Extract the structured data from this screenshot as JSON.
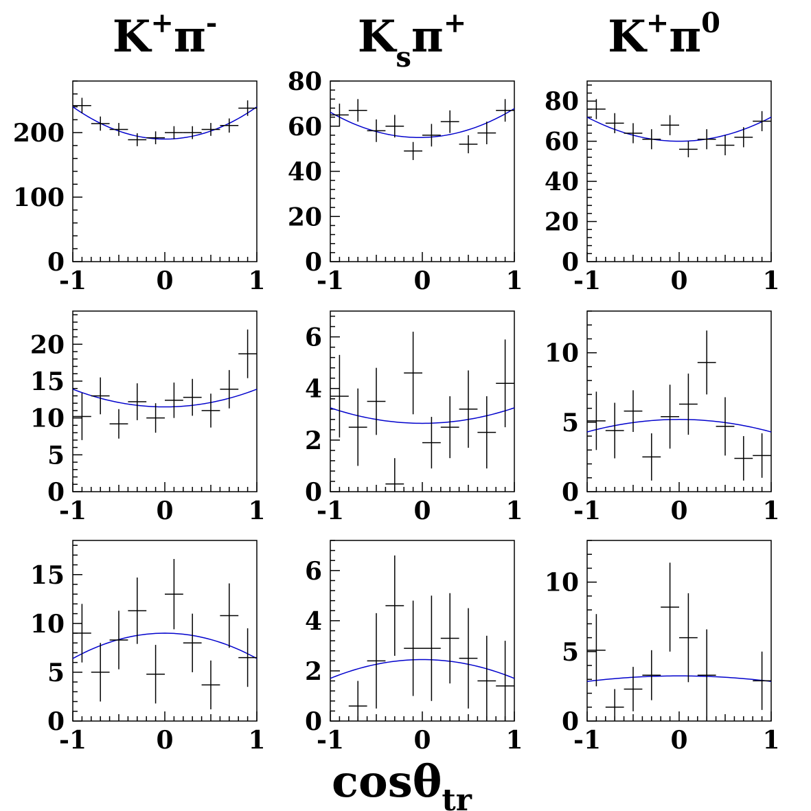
{
  "colors": {
    "fit": "#0000cc",
    "points": "#000000",
    "axes": "#000000"
  },
  "titles": {
    "col0": {
      "base": "K",
      "sup1": "+",
      "mid": "π",
      "sup2": "-",
      "sub": ""
    },
    "col1": {
      "base": "K",
      "sup1": "",
      "mid": "π",
      "sup2": "+",
      "sub": "s"
    },
    "col2": {
      "base": "K",
      "sup1": "+",
      "mid": "π",
      "sup2": "0",
      "sub": ""
    }
  },
  "xlabel": {
    "main": "cosθ",
    "sub": "tr"
  },
  "chart_data": [
    {
      "type": "scatter",
      "row": 0,
      "col": 0,
      "xlim": [
        -1,
        1
      ],
      "ylim": [
        0,
        280
      ],
      "xticks": [
        -1,
        0,
        1
      ],
      "xtick_labels": [
        "-1",
        "0",
        "1"
      ],
      "yticks": [
        0,
        100,
        200
      ],
      "ytick_labels": [
        "0",
        "100",
        "200"
      ],
      "points": [
        {
          "x": -0.9,
          "y": 242,
          "err": 12
        },
        {
          "x": -0.7,
          "y": 214,
          "err": 11
        },
        {
          "x": -0.5,
          "y": 205,
          "err": 10
        },
        {
          "x": -0.3,
          "y": 189,
          "err": 10
        },
        {
          "x": -0.1,
          "y": 192,
          "err": 10
        },
        {
          "x": 0.1,
          "y": 200,
          "err": 10
        },
        {
          "x": 0.3,
          "y": 200,
          "err": 10
        },
        {
          "x": 0.5,
          "y": 205,
          "err": 10
        },
        {
          "x": 0.7,
          "y": 211,
          "err": 11
        },
        {
          "x": 0.9,
          "y": 238,
          "err": 12
        }
      ],
      "fit": {
        "a": 190,
        "b": 0,
        "c": 50
      }
    },
    {
      "type": "scatter",
      "row": 0,
      "col": 1,
      "xlim": [
        -1,
        1
      ],
      "ylim": [
        0,
        80
      ],
      "xticks": [
        -1,
        0,
        1
      ],
      "xtick_labels": [
        "-1",
        "0",
        "1"
      ],
      "yticks": [
        0,
        20,
        40,
        60,
        80
      ],
      "ytick_labels": [
        "0",
        "20",
        "40",
        "60",
        "80"
      ],
      "points": [
        {
          "x": -0.9,
          "y": 65,
          "err": 5
        },
        {
          "x": -0.7,
          "y": 67,
          "err": 5
        },
        {
          "x": -0.5,
          "y": 58,
          "err": 5
        },
        {
          "x": -0.3,
          "y": 60,
          "err": 5
        },
        {
          "x": -0.1,
          "y": 49,
          "err": 4
        },
        {
          "x": 0.1,
          "y": 56,
          "err": 5
        },
        {
          "x": 0.3,
          "y": 62,
          "err": 5
        },
        {
          "x": 0.5,
          "y": 52,
          "err": 4
        },
        {
          "x": 0.7,
          "y": 57,
          "err": 5
        },
        {
          "x": 0.9,
          "y": 67,
          "err": 5
        }
      ],
      "fit": {
        "a": 55,
        "b": 0.8,
        "c": 12
      }
    },
    {
      "type": "scatter",
      "row": 0,
      "col": 2,
      "xlim": [
        -1,
        1
      ],
      "ylim": [
        0,
        90
      ],
      "xticks": [
        -1,
        0,
        1
      ],
      "xtick_labels": [
        "-1",
        "0",
        "1"
      ],
      "yticks": [
        0,
        20,
        40,
        60,
        80
      ],
      "ytick_labels": [
        "0",
        "20",
        "40",
        "60",
        "80"
      ],
      "points": [
        {
          "x": -0.9,
          "y": 76,
          "err": 5
        },
        {
          "x": -0.7,
          "y": 69,
          "err": 5
        },
        {
          "x": -0.5,
          "y": 64,
          "err": 5
        },
        {
          "x": -0.3,
          "y": 61,
          "err": 5
        },
        {
          "x": -0.1,
          "y": 68,
          "err": 5
        },
        {
          "x": 0.1,
          "y": 56,
          "err": 4
        },
        {
          "x": 0.3,
          "y": 61,
          "err": 5
        },
        {
          "x": 0.5,
          "y": 58,
          "err": 5
        },
        {
          "x": 0.7,
          "y": 62,
          "err": 5
        },
        {
          "x": 0.9,
          "y": 70,
          "err": 5
        }
      ],
      "fit": {
        "a": 60,
        "b": 0,
        "c": 12
      }
    },
    {
      "type": "scatter",
      "row": 1,
      "col": 0,
      "xlim": [
        -1,
        1
      ],
      "ylim": [
        0,
        24.5
      ],
      "xticks": [
        -1,
        0,
        1
      ],
      "xtick_labels": [
        "-1",
        "0",
        "1"
      ],
      "yticks": [
        0,
        5,
        10,
        15,
        20
      ],
      "ytick_labels": [
        "0",
        "5",
        "10",
        "15",
        "20"
      ],
      "points": [
        {
          "x": -0.9,
          "y": 10.2,
          "err": 3.2
        },
        {
          "x": -0.7,
          "y": 13,
          "err": 2.5
        },
        {
          "x": -0.5,
          "y": 9.2,
          "err": 2
        },
        {
          "x": -0.3,
          "y": 12.2,
          "err": 2.5
        },
        {
          "x": -0.1,
          "y": 10,
          "err": 2
        },
        {
          "x": 0.1,
          "y": 12.4,
          "err": 2.4
        },
        {
          "x": 0.3,
          "y": 12.8,
          "err": 2.5
        },
        {
          "x": 0.5,
          "y": 11,
          "err": 2.3
        },
        {
          "x": 0.7,
          "y": 13.9,
          "err": 2.6
        },
        {
          "x": 0.9,
          "y": 18.7,
          "err": 3.3
        }
      ],
      "fit": {
        "a": 11.5,
        "b": 0,
        "c": 2.4
      }
    },
    {
      "type": "scatter",
      "row": 1,
      "col": 1,
      "xlim": [
        -1,
        1
      ],
      "ylim": [
        0,
        7
      ],
      "xticks": [
        -1,
        0,
        1
      ],
      "xtick_labels": [
        "-1",
        "0",
        "1"
      ],
      "yticks": [
        0,
        2,
        4,
        6
      ],
      "ytick_labels": [
        "0",
        "2",
        "4",
        "6"
      ],
      "points": [
        {
          "x": -0.9,
          "y": 3.7,
          "err": 1.6
        },
        {
          "x": -0.7,
          "y": 2.5,
          "err": 1.5
        },
        {
          "x": -0.5,
          "y": 3.5,
          "err": 1.3
        },
        {
          "x": -0.3,
          "y": 0.3,
          "err": 1.0
        },
        {
          "x": -0.1,
          "y": 4.6,
          "err": 1.6
        },
        {
          "x": 0.1,
          "y": 1.9,
          "err": 1.0
        },
        {
          "x": 0.3,
          "y": 2.5,
          "err": 1.2
        },
        {
          "x": 0.5,
          "y": 3.2,
          "err": 1.5
        },
        {
          "x": 0.7,
          "y": 2.3,
          "err": 1.4
        },
        {
          "x": 0.9,
          "y": 4.2,
          "err": 1.7
        }
      ],
      "fit": {
        "a": 2.65,
        "b": 0,
        "c": 0.6
      }
    },
    {
      "type": "scatter",
      "row": 1,
      "col": 2,
      "xlim": [
        -1,
        1
      ],
      "ylim": [
        0,
        13
      ],
      "xticks": [
        -1,
        0,
        1
      ],
      "xtick_labels": [
        "-1",
        "0",
        "1"
      ],
      "yticks": [
        0,
        5,
        10
      ],
      "ytick_labels": [
        "0",
        "5",
        "10"
      ],
      "points": [
        {
          "x": -0.9,
          "y": 5.1,
          "err": 2.1
        },
        {
          "x": -0.7,
          "y": 4.4,
          "err": 2.0
        },
        {
          "x": -0.5,
          "y": 5.8,
          "err": 1.5
        },
        {
          "x": -0.3,
          "y": 2.5,
          "err": 1.7
        },
        {
          "x": -0.1,
          "y": 5.4,
          "err": 2.3
        },
        {
          "x": 0.1,
          "y": 6.3,
          "err": 2.2
        },
        {
          "x": 0.3,
          "y": 9.3,
          "err": 2.3
        },
        {
          "x": 0.5,
          "y": 4.7,
          "err": 2.1
        },
        {
          "x": 0.7,
          "y": 2.4,
          "err": 1.6
        },
        {
          "x": 0.9,
          "y": 2.6,
          "err": 1.6
        }
      ],
      "fit": {
        "a": 5.2,
        "b": 0,
        "c": -0.9
      }
    },
    {
      "type": "scatter",
      "row": 2,
      "col": 0,
      "xlim": [
        -1,
        1
      ],
      "ylim": [
        0,
        18.5
      ],
      "xticks": [
        -1,
        0,
        1
      ],
      "xtick_labels": [
        "-1",
        "0",
        "1"
      ],
      "yticks": [
        0,
        5,
        10,
        15
      ],
      "ytick_labels": [
        "0",
        "5",
        "10",
        "15"
      ],
      "points": [
        {
          "x": -0.9,
          "y": 9,
          "err": 3
        },
        {
          "x": -0.7,
          "y": 5,
          "err": 3
        },
        {
          "x": -0.5,
          "y": 8.3,
          "err": 3
        },
        {
          "x": -0.3,
          "y": 11.3,
          "err": 3.4
        },
        {
          "x": -0.1,
          "y": 4.8,
          "err": 3
        },
        {
          "x": 0.1,
          "y": 13,
          "err": 3.6
        },
        {
          "x": 0.3,
          "y": 8,
          "err": 3
        },
        {
          "x": 0.5,
          "y": 3.7,
          "err": 2.5
        },
        {
          "x": 0.7,
          "y": 10.8,
          "err": 3.3
        },
        {
          "x": 0.9,
          "y": 6.5,
          "err": 3
        }
      ],
      "fit": {
        "a": 9,
        "b": 0,
        "c": -2.6
      }
    },
    {
      "type": "scatter",
      "row": 2,
      "col": 1,
      "xlim": [
        -1,
        1
      ],
      "ylim": [
        0,
        7.2
      ],
      "xticks": [
        -1,
        0,
        1
      ],
      "xtick_labels": [
        "-1",
        "0",
        "1"
      ],
      "yticks": [
        0,
        2,
        4,
        6
      ],
      "ytick_labels": [
        "0",
        "2",
        "4",
        "6"
      ],
      "points": [
        {
          "x": -0.7,
          "y": 0.6,
          "err": 1.0
        },
        {
          "x": -0.5,
          "y": 2.4,
          "err": 1.9
        },
        {
          "x": -0.3,
          "y": 4.6,
          "err": 2.0
        },
        {
          "x": -0.1,
          "y": 2.9,
          "err": 1.9
        },
        {
          "x": 0.1,
          "y": 2.9,
          "err": 2.1
        },
        {
          "x": 0.3,
          "y": 3.3,
          "err": 1.8
        },
        {
          "x": 0.5,
          "y": 2.5,
          "err": 2.0
        },
        {
          "x": 0.7,
          "y": 1.6,
          "err": 1.8
        },
        {
          "x": 0.9,
          "y": 1.4,
          "err": 1.8
        }
      ],
      "fit": {
        "a": 2.45,
        "b": 0,
        "c": -0.75
      }
    },
    {
      "type": "scatter",
      "row": 2,
      "col": 2,
      "xlim": [
        -1,
        1
      ],
      "ylim": [
        0,
        13
      ],
      "xticks": [
        -1,
        0,
        1
      ],
      "xtick_labels": [
        "-1",
        "0",
        "1"
      ],
      "yticks": [
        0,
        5,
        10
      ],
      "ytick_labels": [
        "0",
        "5",
        "10"
      ],
      "points": [
        {
          "x": -0.9,
          "y": 5.1,
          "err": 2.6
        },
        {
          "x": -0.7,
          "y": 1,
          "err": 1.3
        },
        {
          "x": -0.5,
          "y": 2.3,
          "err": 1.6
        },
        {
          "x": -0.3,
          "y": 3.3,
          "err": 1.8
        },
        {
          "x": -0.1,
          "y": 8.2,
          "err": 3.2
        },
        {
          "x": 0.1,
          "y": 6,
          "err": 3.2
        },
        {
          "x": 0.3,
          "y": 3.3,
          "err": 3.3
        },
        {
          "x": 0.9,
          "y": 2.9,
          "err": 2.1
        }
      ],
      "fit": {
        "a": 3.25,
        "b": 0,
        "c": -0.4
      }
    }
  ]
}
